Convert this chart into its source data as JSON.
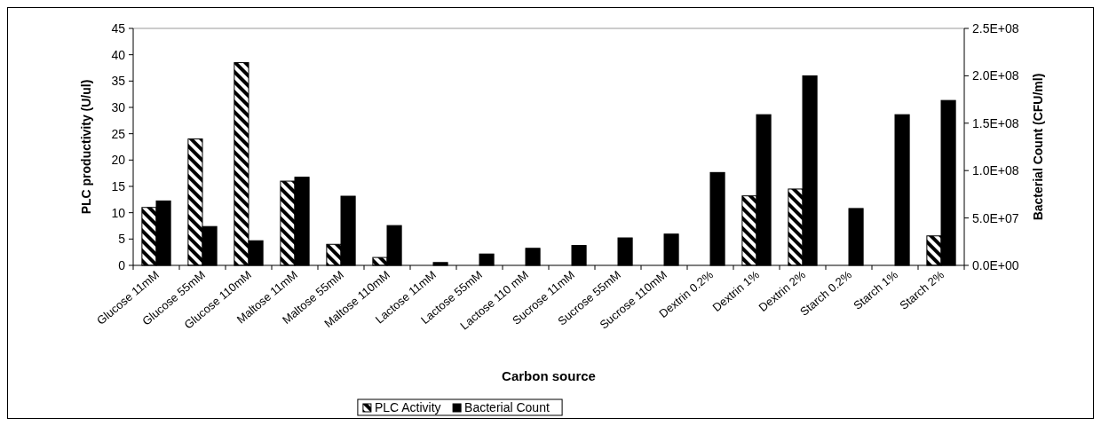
{
  "chart_data": {
    "type": "bar",
    "xlabel": "Carbon source",
    "ylabel": "PLC productivity (U/ul)",
    "y2label": "Bacterial Count (CFU/ml)",
    "categories": [
      "Glucose 11mM",
      "Glucose 55mM",
      "Glucose 110mM",
      "Maltose 11mM",
      "Maltose 55mM",
      "Maltose 110mM",
      "Lactose 11mM",
      "Lactose 55mM",
      "Lactose 110 mM",
      "Sucrose 11mM",
      "Sucrose 55mM",
      "Sucrose 110mM",
      "Dextrin 0.2%",
      "Dextrin 1%",
      "Dextrin 2%",
      "Starch 0.2%",
      "Starch 1%",
      "Starch 2%"
    ],
    "series": [
      {
        "name": "PLC Activity",
        "color": "#000000",
        "values": [
          11,
          24,
          38.5,
          16,
          4,
          1.5,
          0,
          0,
          0,
          0,
          0,
          0,
          0,
          13.2,
          14.5,
          0,
          0,
          5.6
        ]
      },
      {
        "name": "Bacterial Count",
        "color": "#000000",
        "axis": "y2",
        "values": [
          68000000,
          41000000,
          26000000,
          93000000,
          73000000,
          42000000,
          3000000,
          12000000,
          18000000,
          21000000,
          29000000,
          33000000,
          98000000,
          159000000,
          200000000,
          60000000,
          159000000,
          174000000
        ]
      }
    ],
    "ylim": [
      0,
      45
    ],
    "yticks": [
      0,
      5,
      10,
      15,
      20,
      25,
      30,
      35,
      40,
      45
    ],
    "y2lim": [
      0,
      250000000
    ],
    "y2ticks": [
      {
        "value": 0,
        "label": "0.0E+00"
      },
      {
        "value": 50000000,
        "label": "5.0E+07"
      },
      {
        "value": 100000000,
        "label": "1.0E+08"
      },
      {
        "value": 150000000,
        "label": "1.5E+08"
      },
      {
        "value": 200000000,
        "label": "2.0E+08"
      },
      {
        "value": 250000000,
        "label": "2.5E+08"
      }
    ],
    "legend": "bottom",
    "grid": false
  }
}
